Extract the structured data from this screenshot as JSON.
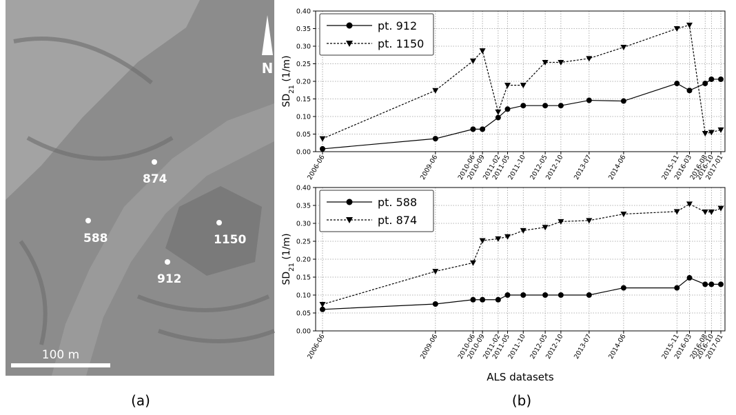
{
  "map": {
    "points": [
      {
        "label": "874"
      },
      {
        "label": "588"
      },
      {
        "label": "1150"
      },
      {
        "label": "912"
      }
    ],
    "north": "N",
    "scale": "100 m"
  },
  "panel_labels": [
    "(a)",
    "(b)"
  ],
  "chart_data": [
    {
      "type": "line",
      "ylabel_parts": [
        "SD",
        "21",
        " (1/m)"
      ],
      "x": [
        "2006-06",
        "2009-06",
        "2010-06",
        "2010-09",
        "2011-02",
        "2011-05",
        "2011-10",
        "2012-05",
        "2012-10",
        "2013-07",
        "2014-06",
        "2015-11",
        "2016-03",
        "2016-08",
        "2016-10",
        "2017-01"
      ],
      "ylim": [
        0,
        0.4
      ],
      "yticks": [
        {
          "value": 0,
          "label": "0.00"
        },
        {
          "value": 0.05,
          "label": "0.05"
        },
        {
          "value": 0.1,
          "label": "0.10"
        },
        {
          "value": 0.15,
          "label": "0.15"
        },
        {
          "value": 0.2,
          "label": "0.20"
        },
        {
          "value": 0.25,
          "label": "0.25"
        },
        {
          "value": 0.3,
          "label": "0.30"
        },
        {
          "value": 0.35,
          "label": "0.35"
        },
        {
          "value": 0.4,
          "label": "0.40"
        }
      ],
      "grid": true,
      "legend": "upper left",
      "series": [
        {
          "name": "pt. 912",
          "color": "#000000",
          "marker": "circle",
          "dash": false,
          "values": [
            0.008,
            0.037,
            0.064,
            0.064,
            0.097,
            0.121,
            0.131,
            0.131,
            0.131,
            0.146,
            0.144,
            0.194,
            0.174,
            0.194,
            0.206,
            0.206
          ]
        },
        {
          "name": "pt. 1150",
          "color": "#000000",
          "marker": "triangle-down",
          "dash": true,
          "values": [
            0.037,
            0.174,
            0.258,
            0.287,
            0.113,
            0.189,
            0.189,
            0.254,
            0.254,
            0.265,
            0.297,
            0.35,
            0.36,
            0.052,
            0.055,
            0.062
          ]
        }
      ]
    },
    {
      "type": "line",
      "ylabel_parts": [
        "SD",
        "21",
        " (1/m)"
      ],
      "xlabel": "ALS datasets",
      "x": [
        "2006-06",
        "2009-06",
        "2010-06",
        "2010-09",
        "2011-02",
        "2011-05",
        "2011-10",
        "2012-05",
        "2012-10",
        "2013-07",
        "2014-06",
        "2015-11",
        "2016-03",
        "2016-08",
        "2016-10",
        "2017-01"
      ],
      "ylim": [
        0,
        0.4
      ],
      "yticks": [
        {
          "value": 0,
          "label": "0.00"
        },
        {
          "value": 0.05,
          "label": "0.05"
        },
        {
          "value": 0.1,
          "label": "0.10"
        },
        {
          "value": 0.15,
          "label": "0.15"
        },
        {
          "value": 0.2,
          "label": "0.20"
        },
        {
          "value": 0.25,
          "label": "0.25"
        },
        {
          "value": 0.3,
          "label": "0.30"
        },
        {
          "value": 0.35,
          "label": "0.35"
        },
        {
          "value": 0.4,
          "label": "0.40"
        }
      ],
      "grid": true,
      "legend": "upper left",
      "series": [
        {
          "name": "pt. 588",
          "color": "#000000",
          "marker": "circle",
          "dash": false,
          "values": [
            0.06,
            0.075,
            0.087,
            0.087,
            0.087,
            0.1,
            0.1,
            0.1,
            0.1,
            0.1,
            0.12,
            0.12,
            0.148,
            0.13,
            0.13,
            0.13
          ]
        },
        {
          "name": "pt. 874",
          "color": "#000000",
          "marker": "triangle-down",
          "dash": true,
          "values": [
            0.074,
            0.166,
            0.19,
            0.252,
            0.257,
            0.263,
            0.28,
            0.289,
            0.305,
            0.308,
            0.326,
            0.333,
            0.354,
            0.332,
            0.332,
            0.342
          ]
        }
      ]
    }
  ]
}
